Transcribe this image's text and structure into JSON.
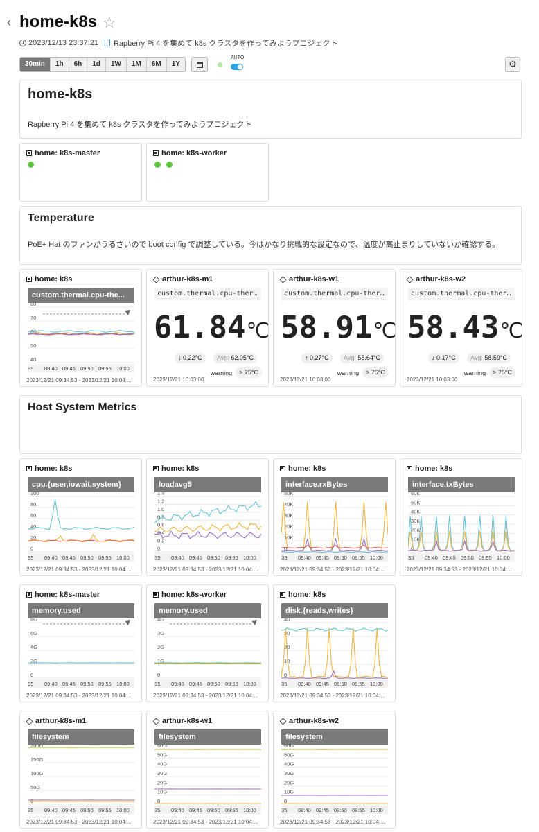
{
  "header": {
    "title": "home-k8s",
    "datetime": "2023/12/13 23:37:21",
    "description_link": "Rapberry Pi 4 を集めて k8s クラスタを作ってみようプロジェクト"
  },
  "toolbar": {
    "ranges": [
      "30min",
      "1h",
      "6h",
      "1d",
      "1W",
      "1M",
      "6M",
      "1Y"
    ],
    "active_range": "30min",
    "auto_label": "AUTO",
    "auto_enabled": true
  },
  "intro": {
    "title": "home-k8s",
    "text": "Rapberry Pi 4 を集めて k8s クラスタを作ってみようプロジェクト"
  },
  "roles": [
    {
      "label": "home: k8s-master",
      "status_count": 1
    },
    {
      "label": "home: k8s-worker",
      "status_count": 2
    }
  ],
  "temperature_section": {
    "title": "Temperature",
    "text": "PoE+ Hat のファンがうるさいので boot config で調整している。今はかなり挑戦的な設定なので、温度が高止まりしていないか確認する。"
  },
  "x_ticks": [
    ":35",
    "09:40",
    "09:45",
    "09:50",
    "09:55",
    "10:00"
  ],
  "graph_range": "2023/12/21 09:34:53 - 2023/12/21 10:04:...",
  "temp_graph": {
    "host": "home: k8s",
    "title": "custom.thermal.cpu-the...",
    "y_ticks": [
      "80",
      "70",
      "60",
      "50",
      "40"
    ]
  },
  "temp_values": [
    {
      "host": "arthur-k8s-m1",
      "metric": "custom.thermal.cpu-therm...",
      "value": "61.84",
      "unit": "℃",
      "diff_arrow": "↓",
      "diff": "0.22°C",
      "avg_label": "Avg:",
      "avg": "62.05°C",
      "warning_label": "warning",
      "threshold": "> 75°C",
      "timestamp": "2023/12/21 10:03:00"
    },
    {
      "host": "arthur-k8s-w1",
      "metric": "custom.thermal.cpu-therm...",
      "value": "58.91",
      "unit": "℃",
      "diff_arrow": "↑",
      "diff": "0.27°C",
      "avg_label": "Avg:",
      "avg": "58.64°C",
      "warning_label": "warning",
      "threshold": "> 75°C",
      "timestamp": "2023/12/21 10:03:00"
    },
    {
      "host": "arthur-k8s-w2",
      "metric": "custom.thermal.cpu-therm...",
      "value": "58.43",
      "unit": "℃",
      "diff_arrow": "↓",
      "diff": "0.17°C",
      "avg_label": "Avg:",
      "avg": "58.59°C",
      "warning_label": "warning",
      "threshold": "> 75°C",
      "timestamp": "2023/12/21 10:03:00"
    }
  ],
  "host_metrics_section": {
    "title": "Host System Metrics"
  },
  "graphs_row1": [
    {
      "host": "home: k8s",
      "title": "cpu.{user,iowait,system}",
      "y_ticks": [
        "100",
        "80",
        "60",
        "40",
        "20",
        "0"
      ]
    },
    {
      "host": "home: k8s",
      "title": "loadavg5",
      "y_ticks": [
        "1.4",
        "1.2",
        "1.0",
        "0.8",
        "0.6",
        "0.4",
        "0.2",
        "0"
      ]
    },
    {
      "host": "home: k8s",
      "title": "interface.rxBytes",
      "y_ticks": [
        "50K",
        "40K",
        "30K",
        "20K",
        "10K",
        "0"
      ]
    },
    {
      "host": "home: k8s",
      "title": "interface.txBytes",
      "y_ticks": [
        "60K",
        "50K",
        "40K",
        "30K",
        "20K",
        "10K",
        "0"
      ]
    }
  ],
  "graphs_row2": [
    {
      "host": "home: k8s-master",
      "title": "memory.used",
      "y_ticks": [
        "8G",
        "6G",
        "4G",
        "2G",
        "0"
      ]
    },
    {
      "host": "home: k8s-worker",
      "title": "memory.used",
      "y_ticks": [
        "4G",
        "3G",
        "2G",
        "1G",
        "0"
      ]
    },
    {
      "host": "home: k8s",
      "title": "disk.{reads,writes}",
      "y_ticks": [
        "40",
        "30",
        "20",
        "10",
        "0"
      ]
    }
  ],
  "graphs_row3": [
    {
      "host": "arthur-k8s-m1",
      "title": "filesystem",
      "y_ticks": [
        "200G",
        "150G",
        "100G",
        "50G",
        "0"
      ]
    },
    {
      "host": "arthur-k8s-w1",
      "title": "filesystem",
      "y_ticks": [
        "60G",
        "50G",
        "40G",
        "30G",
        "20G",
        "10G",
        "0"
      ]
    },
    {
      "host": "arthur-k8s-w2",
      "title": "filesystem",
      "y_ticks": [
        "60G",
        "50G",
        "40G",
        "30G",
        "20G",
        "10G",
        "0"
      ]
    }
  ],
  "colors": {
    "blue": "#66c2d9",
    "orange": "#f0b43c",
    "purple": "#9b6fc7",
    "red": "#e0605a",
    "olive": "#b5b52a",
    "status_green": "#5cc93c"
  }
}
